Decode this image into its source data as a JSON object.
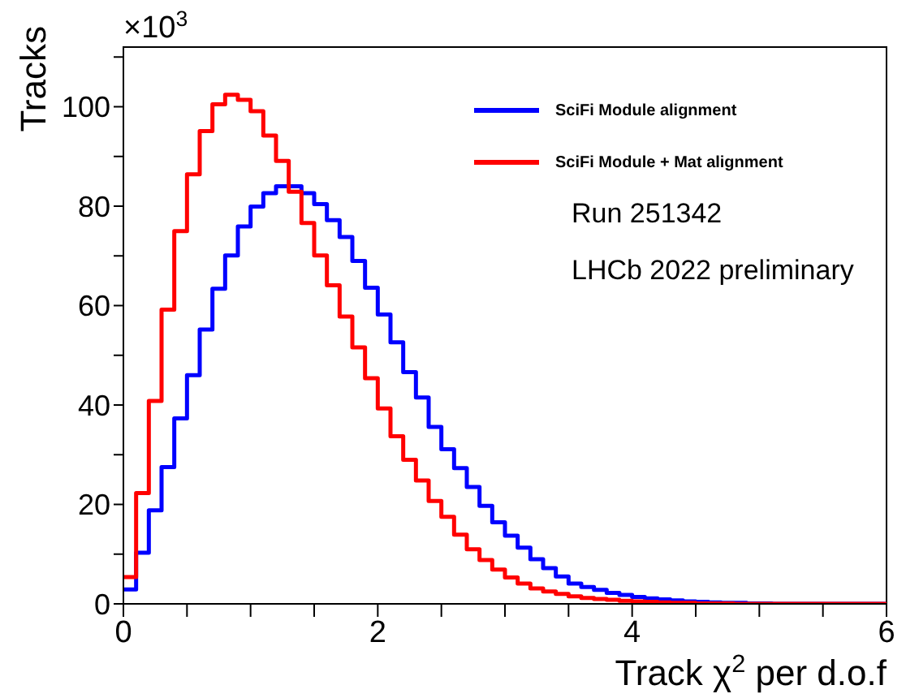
{
  "chart_data": {
    "type": "histogram",
    "xlabel": "Track χ$^{2}$ per d.o.f",
    "ylabel": "Tracks",
    "annotations": [
      "×10$^{3}$",
      "Run 251342",
      "LHCb 2022 preliminary"
    ],
    "bins": [
      0,
      0.1,
      0.2,
      0.3,
      0.4,
      0.5,
      0.6,
      0.7,
      0.8,
      0.9,
      1,
      1.1,
      1.2,
      1.3,
      1.4,
      1.5,
      1.6,
      1.7,
      1.8,
      1.9,
      2,
      2.1,
      2.2,
      2.3,
      2.4,
      2.5,
      2.6,
      2.7,
      2.8,
      2.9,
      3,
      3.1,
      3.2,
      3.3,
      3.4,
      3.5,
      3.6,
      3.7,
      3.8,
      3.9,
      4,
      4.1,
      4.2,
      4.3,
      4.4,
      4.5,
      4.6,
      4.7,
      4.8,
      4.9,
      5,
      5.1,
      5.2,
      5.3,
      5.4,
      5.5,
      5.6,
      5.7,
      5.8,
      5.9,
      6
    ],
    "series": [
      {
        "name": "SciFi Module alignment",
        "color": "#0000ff",
        "values": [
          2.9,
          10.3,
          18.8,
          27.5,
          37.3,
          46,
          55.2,
          63.4,
          70.1,
          75.9,
          79.9,
          82.6,
          84,
          84,
          82.6,
          80.4,
          77.2,
          73.8,
          69,
          63.6,
          58.2,
          52.6,
          46.6,
          41.5,
          35.6,
          31.1,
          27.3,
          23.5,
          19.7,
          16.4,
          13.7,
          11.3,
          9,
          7.2,
          5.5,
          4.1,
          3.4,
          2.8,
          2.2,
          1.8,
          1.4,
          1.1,
          0.9,
          0.7,
          0.5,
          0.4,
          0.3,
          0.2,
          0.2,
          0.1,
          0.1,
          0,
          0,
          0,
          0,
          0,
          0,
          0,
          0,
          0
        ]
      },
      {
        "name": "SciFi Module + Mat alignment",
        "color": "#ff0000",
        "values": [
          5.4,
          22.3,
          40.8,
          59.2,
          75,
          86.4,
          95.1,
          100.5,
          102.4,
          101.4,
          99.1,
          94.2,
          89.1,
          82.9,
          76.6,
          70.1,
          64.1,
          57.8,
          51.6,
          45.4,
          39.3,
          33.7,
          29,
          24.8,
          20.7,
          17.5,
          13.9,
          11,
          8.8,
          6.9,
          5.3,
          4.1,
          3.1,
          2.5,
          2,
          1.5,
          1.2,
          1,
          0.8,
          0.6,
          0.5,
          0.4,
          0.3,
          0.2,
          0.2,
          0.1,
          0.1,
          0.1,
          0,
          0,
          0,
          0,
          0,
          0,
          0,
          0,
          0,
          0,
          0,
          0
        ]
      }
    ],
    "xlim": [
      0,
      6
    ],
    "xticks": [
      0,
      {
        "value": 0.5,
        "label": null
      },
      {
        "value": 1,
        "label": null
      },
      {
        "value": 1.5,
        "label": null
      },
      2,
      {
        "value": 2.5,
        "label": null
      },
      {
        "value": 3,
        "label": null
      },
      {
        "value": 3.5,
        "label": null
      },
      4,
      {
        "value": 4.5,
        "label": null
      },
      {
        "value": 5,
        "label": null
      },
      {
        "value": 5.5,
        "label": null
      },
      6
    ],
    "ylim": [
      0,
      112
    ],
    "yticks": [
      0,
      {
        "value": 10,
        "label": null
      },
      20,
      {
        "value": 30,
        "label": null
      },
      40,
      {
        "value": 50,
        "label": null
      },
      60,
      {
        "value": 70,
        "label": null
      },
      80,
      {
        "value": 90,
        "label": null
      },
      100,
      {
        "value": 110,
        "label": null
      }
    ],
    "grid": false,
    "legend": "top right",
    "marker": "none",
    "line_style": "solid"
  }
}
